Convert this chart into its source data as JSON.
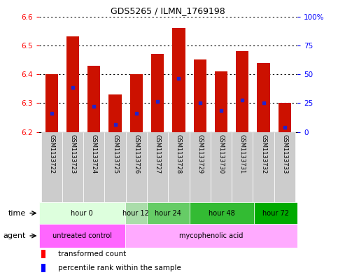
{
  "title": "GDS5265 / ILMN_1769198",
  "samples": [
    "GSM1133722",
    "GSM1133723",
    "GSM1133724",
    "GSM1133725",
    "GSM1133726",
    "GSM1133727",
    "GSM1133728",
    "GSM1133729",
    "GSM1133730",
    "GSM1133731",
    "GSM1133732",
    "GSM1133733"
  ],
  "bar_top": [
    6.4,
    6.53,
    6.43,
    6.33,
    6.4,
    6.47,
    6.56,
    6.45,
    6.41,
    6.48,
    6.44,
    6.3
  ],
  "bar_bottom": [
    6.2,
    6.2,
    6.2,
    6.2,
    6.2,
    6.2,
    6.2,
    6.2,
    6.2,
    6.2,
    6.2,
    6.2
  ],
  "blue_marker": [
    6.265,
    6.355,
    6.29,
    6.225,
    6.265,
    6.305,
    6.385,
    6.3,
    6.275,
    6.31,
    6.3,
    6.215
  ],
  "ylim": [
    6.2,
    6.6
  ],
  "yticks_left": [
    6.2,
    6.3,
    6.4,
    6.5,
    6.6
  ],
  "yticks_right": [
    0,
    25,
    50,
    75,
    100
  ],
  "ytick_right_labels": [
    "0",
    "25",
    "50",
    "75",
    "100%"
  ],
  "bar_color": "#cc1100",
  "blue_color": "#2222cc",
  "time_groups": [
    {
      "label": "hour 0",
      "start": 0,
      "end": 4,
      "color": "#ddffdd"
    },
    {
      "label": "hour 12",
      "start": 4,
      "end": 5,
      "color": "#aaddaa"
    },
    {
      "label": "hour 24",
      "start": 5,
      "end": 7,
      "color": "#66cc66"
    },
    {
      "label": "hour 48",
      "start": 7,
      "end": 10,
      "color": "#33bb33"
    },
    {
      "label": "hour 72",
      "start": 10,
      "end": 12,
      "color": "#00aa00"
    }
  ],
  "agent_groups": [
    {
      "label": "untreated control",
      "start": 0,
      "end": 4,
      "color": "#ff66ff"
    },
    {
      "label": "mycophenolic acid",
      "start": 4,
      "end": 12,
      "color": "#ffaaff"
    }
  ],
  "legend_red_label": "transformed count",
  "legend_blue_label": "percentile rank within the sample"
}
